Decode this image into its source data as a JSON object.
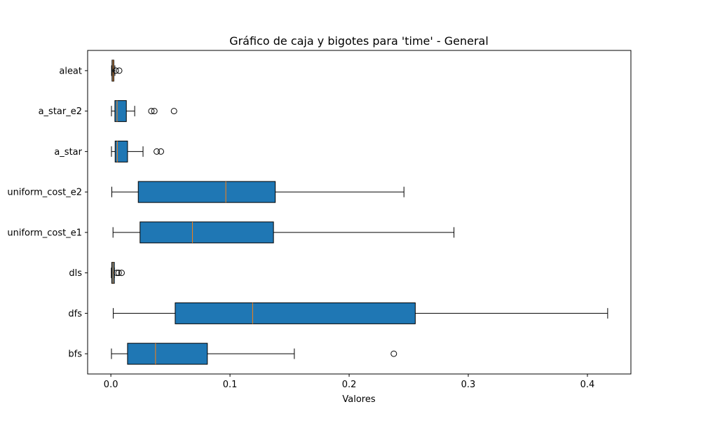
{
  "chart_data": {
    "type": "boxplot",
    "orientation": "horizontal",
    "title": "Gráfico de caja y bigotes para 'time' - General",
    "xlabel": "Valores",
    "ylabel": "",
    "xlim": [
      -0.0195,
      0.4365
    ],
    "x_ticks": [
      0.0,
      0.1,
      0.2,
      0.3,
      0.4
    ],
    "x_tick_labels": [
      "0.0",
      "0.1",
      "0.2",
      "0.3",
      "0.4"
    ],
    "grid": false,
    "legend": "none",
    "box_color": "#1f77b4",
    "median_color": "#ff7f0e",
    "edge_color": "#000000",
    "categories": [
      "aleat",
      "a_star_e2",
      "a_star",
      "uniform_cost_e2",
      "uniform_cost_e1",
      "dls",
      "dfs",
      "bfs"
    ],
    "series": [
      {
        "label": "aleat",
        "whisker_low": 0.0006,
        "q1": 0.001,
        "median": 0.0018,
        "q3": 0.0025,
        "whisker_high": 0.0034,
        "outliers": [
          0.0041,
          0.007
        ]
      },
      {
        "label": "a_star_e2",
        "whisker_low": 0.0005,
        "q1": 0.0034,
        "median": 0.0052,
        "q3": 0.013,
        "whisker_high": 0.02,
        "outliers": [
          0.034,
          0.0365,
          0.053
        ]
      },
      {
        "label": "a_star",
        "whisker_low": 0.0005,
        "q1": 0.0036,
        "median": 0.0054,
        "q3": 0.014,
        "whisker_high": 0.027,
        "outliers": [
          0.0385,
          0.042
        ]
      },
      {
        "label": "uniform_cost_e2",
        "whisker_low": 0.0008,
        "q1": 0.023,
        "median": 0.0965,
        "q3": 0.138,
        "whisker_high": 0.246,
        "outliers": []
      },
      {
        "label": "uniform_cost_e1",
        "whisker_low": 0.0018,
        "q1": 0.0245,
        "median": 0.0685,
        "q3": 0.1365,
        "whisker_high": 0.288,
        "outliers": []
      },
      {
        "label": "dls",
        "whisker_low": 0.0004,
        "q1": 0.0008,
        "median": 0.0018,
        "q3": 0.0029,
        "whisker_high": 0.003,
        "outliers": [
          0.005,
          0.0065,
          0.009
        ]
      },
      {
        "label": "dfs",
        "whisker_low": 0.002,
        "q1": 0.054,
        "median": 0.119,
        "q3": 0.2555,
        "whisker_high": 0.417,
        "outliers": []
      },
      {
        "label": "bfs",
        "whisker_low": 0.0005,
        "q1": 0.014,
        "median": 0.0375,
        "q3": 0.081,
        "whisker_high": 0.154,
        "outliers": [
          0.2375
        ]
      }
    ]
  }
}
